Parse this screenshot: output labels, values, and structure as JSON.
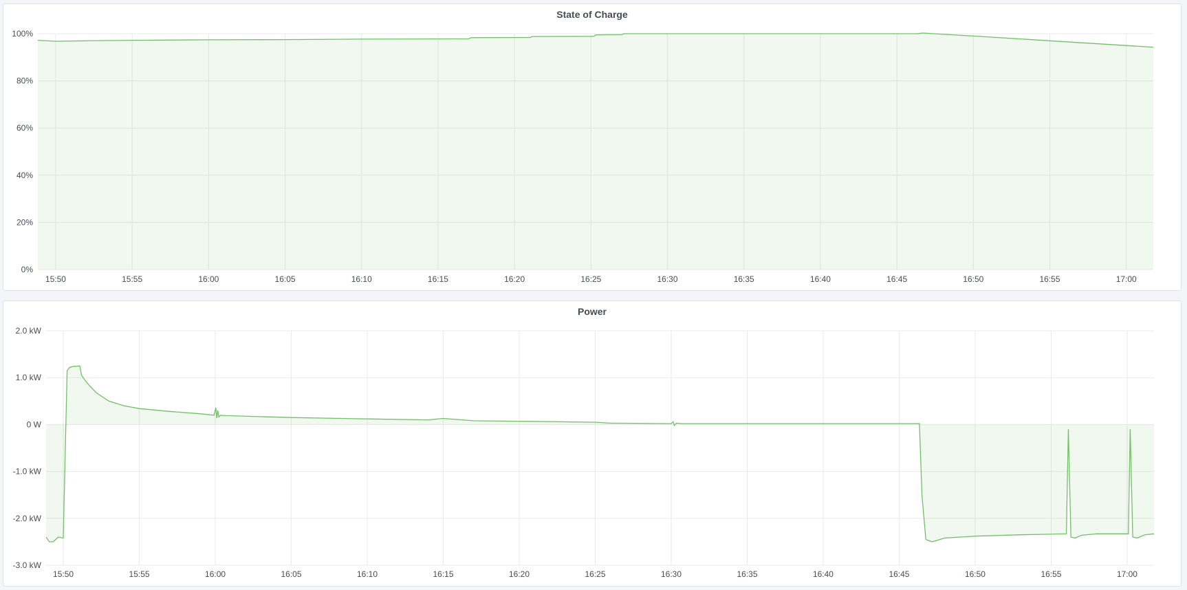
{
  "colors": {
    "line": "#73bf69",
    "fill": "rgba(115,191,105,0.11)",
    "grid": "#e9e9e9",
    "text": "#464c54"
  },
  "chart_data": [
    {
      "type": "area",
      "title": "State of Charge",
      "xlabel": "",
      "ylabel": "",
      "xlim": [
        "15:48:50",
        "17:01:46"
      ],
      "ylim": [
        0,
        100
      ],
      "grid": true,
      "yticks": [
        0,
        20,
        40,
        60,
        80,
        100
      ],
      "ytick_labels": [
        "0%",
        "20%",
        "40%",
        "60%",
        "80%",
        "100%"
      ],
      "xticks": [
        "15:50",
        "15:55",
        "16:00",
        "16:05",
        "16:10",
        "16:15",
        "16:20",
        "16:25",
        "16:30",
        "16:35",
        "16:40",
        "16:45",
        "16:50",
        "16:55",
        "17:00"
      ],
      "series": [
        {
          "x": [
            "15:48:50",
            "15:50:00",
            "15:52:00",
            "15:55:00",
            "16:00:00",
            "16:05:00",
            "16:10:00",
            "16:17:00",
            "16:17:10",
            "16:21:00",
            "16:21:10",
            "16:25:10",
            "16:25:20",
            "16:27:00",
            "16:27:10",
            "16:46:20",
            "16:46:40",
            "16:50:00",
            "16:55:00",
            "17:00:00",
            "17:01:46"
          ],
          "y": [
            97.2,
            96.8,
            97.0,
            97.2,
            97.4,
            97.5,
            97.7,
            97.8,
            98.3,
            98.4,
            98.8,
            98.9,
            99.5,
            99.6,
            100,
            100,
            100.3,
            99,
            97,
            95,
            94.3
          ]
        }
      ]
    },
    {
      "type": "area",
      "title": "Power",
      "xlabel": "",
      "ylabel": "",
      "xlim": [
        "15:48:52",
        "17:01:46"
      ],
      "ylim": [
        -3.0,
        2.0
      ],
      "grid": true,
      "yticks": [
        -3,
        -2,
        -1,
        0,
        1,
        2
      ],
      "ytick_labels": [
        "-3.0 kW",
        "-2.0 kW",
        "-1.0 kW",
        "0 W",
        "1.0 kW",
        "2.0 kW"
      ],
      "xticks": [
        "15:50",
        "15:55",
        "16:00",
        "16:05",
        "16:10",
        "16:15",
        "16:20",
        "16:25",
        "16:30",
        "16:35",
        "16:40",
        "16:45",
        "16:50",
        "16:55",
        "17:00"
      ],
      "series": [
        {
          "x": [
            "15:48:52",
            "15:49:05",
            "15:49:20",
            "15:49:40",
            "15:50:00",
            "15:50:08",
            "15:50:15",
            "15:50:25",
            "15:50:40",
            "15:51:05",
            "15:51:12",
            "15:51:25",
            "15:51:45",
            "15:52:10",
            "15:53:00",
            "15:54:00",
            "15:55:00",
            "15:57:00",
            "15:59:00",
            "15:59:55",
            "16:00:02",
            "16:00:06",
            "16:00:10",
            "16:00:14",
            "16:00:20",
            "16:00:40",
            "16:05:00",
            "16:10:00",
            "16:14:00",
            "16:15:00",
            "16:17:00",
            "16:20:00",
            "16:25:00",
            "16:26:00",
            "16:30:00",
            "16:30:08",
            "16:30:12",
            "16:30:20",
            "16:30:40",
            "16:40:00",
            "16:46:20",
            "16:46:30",
            "16:46:45",
            "16:47:10",
            "16:48:00",
            "16:50:00",
            "16:53:00",
            "16:56:00",
            "16:56:08",
            "16:56:18",
            "16:56:35",
            "16:57:00",
            "16:58:00",
            "17:00:05",
            "17:00:12",
            "17:00:22",
            "17:00:40",
            "17:01:10",
            "17:01:46"
          ],
          "y": [
            -2.4,
            -2.5,
            -2.5,
            -2.4,
            -2.42,
            -0.5,
            1.15,
            1.22,
            1.24,
            1.25,
            1.05,
            0.95,
            0.82,
            0.68,
            0.5,
            0.4,
            0.34,
            0.28,
            0.23,
            0.2,
            0.36,
            0.14,
            0.3,
            0.16,
            0.2,
            0.19,
            0.15,
            0.12,
            0.1,
            0.13,
            0.08,
            0.07,
            0.05,
            0.03,
            0.02,
            0.06,
            -0.02,
            0.03,
            0.02,
            0.02,
            0.02,
            -1.5,
            -2.45,
            -2.5,
            -2.42,
            -2.38,
            -2.35,
            -2.33,
            -0.1,
            -2.4,
            -2.42,
            -2.36,
            -2.33,
            -2.33,
            -0.1,
            -2.4,
            -2.42,
            -2.35,
            -2.33
          ]
        }
      ]
    }
  ]
}
